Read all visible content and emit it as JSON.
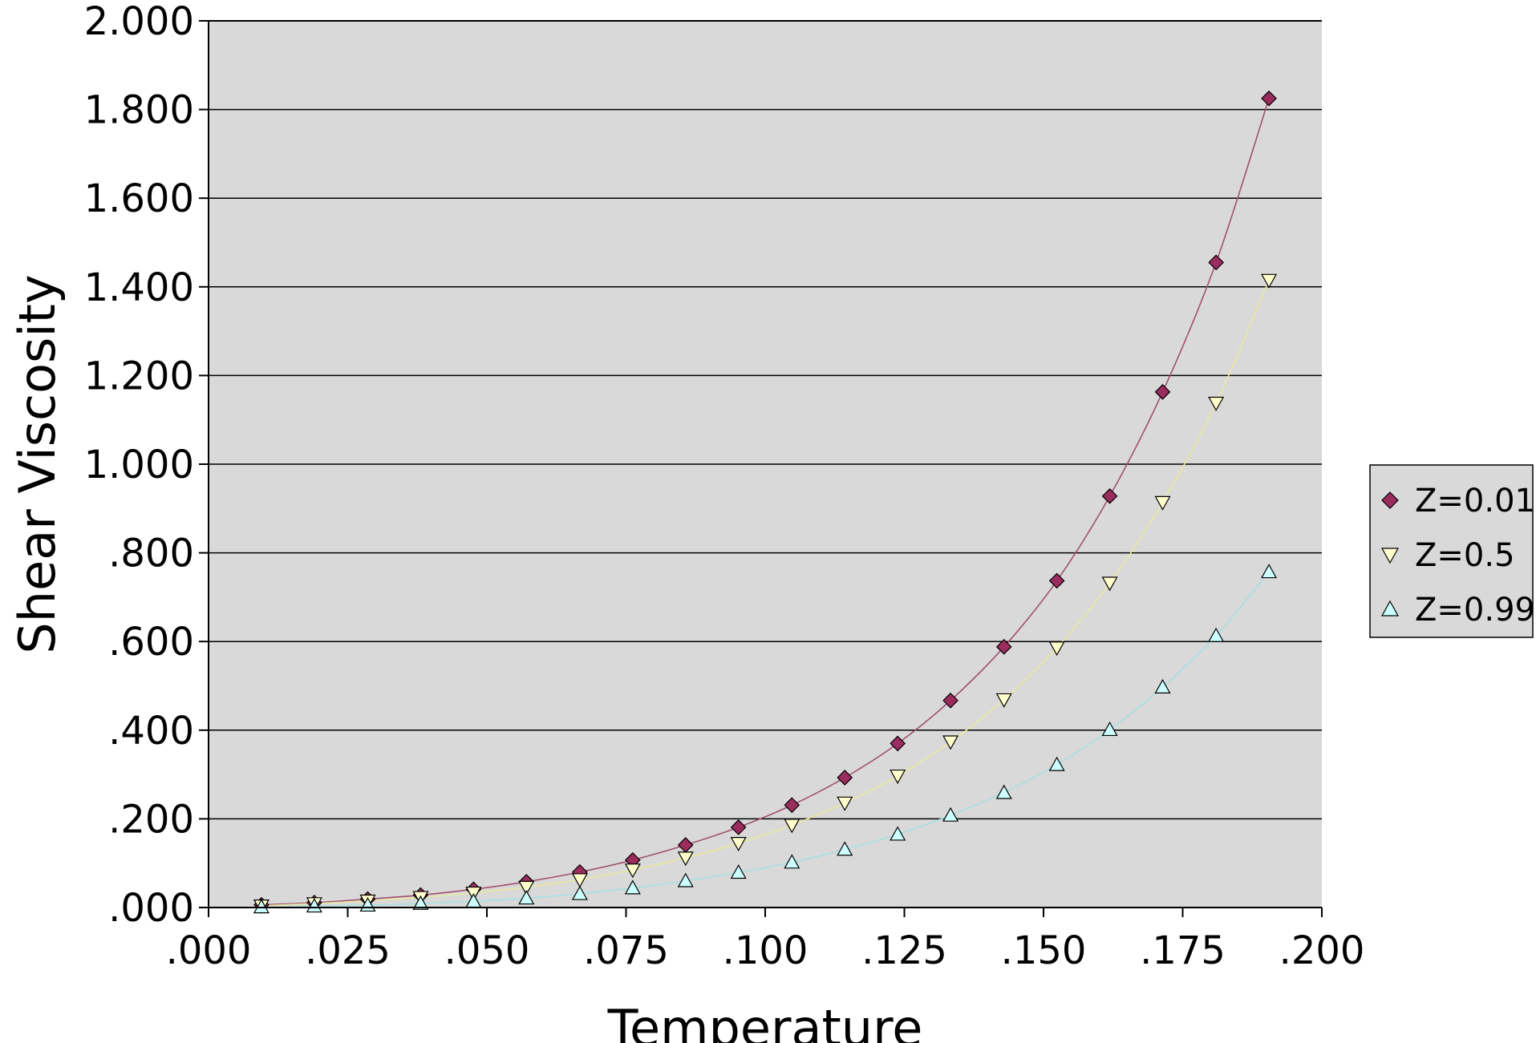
{
  "chart_data": {
    "type": "line",
    "title": "",
    "xlabel": "Temperature",
    "ylabel": "Shear Viscosity",
    "xlim": [
      0,
      0.2
    ],
    "ylim": [
      0,
      2.0
    ],
    "x_ticks": [
      ".000",
      ".025",
      ".050",
      ".075",
      ".100",
      ".125",
      ".150",
      ".175",
      ".200"
    ],
    "y_ticks": [
      ".000",
      ".200",
      ".400",
      ".600",
      ".800",
      "1.000",
      "1.200",
      "1.400",
      "1.600",
      "1.800",
      "2.000"
    ],
    "grid": "horizontal",
    "background": "#d9d9d9",
    "legend_position": "right",
    "x": [
      0.0095,
      0.019,
      0.0286,
      0.0381,
      0.0476,
      0.0571,
      0.0667,
      0.0762,
      0.0857,
      0.0952,
      0.1048,
      0.1143,
      0.1238,
      0.1333,
      0.1429,
      0.1524,
      0.1619,
      0.1714,
      0.181,
      0.1905
    ],
    "series": [
      {
        "name": "Z=0.01",
        "marker": "diamond",
        "color": "#9b2c5e",
        "line_color": "#a05070",
        "values": [
          0.006,
          0.011,
          0.019,
          0.028,
          0.041,
          0.058,
          0.08,
          0.107,
          0.141,
          0.181,
          0.231,
          0.293,
          0.37,
          0.467,
          0.588,
          0.737,
          0.928,
          1.163,
          1.455,
          1.825
        ]
      },
      {
        "name": "Z=0.5",
        "marker": "triangle-down",
        "color": "#ffffcc",
        "line_color": "#e8e8a0",
        "values": [
          0.004,
          0.009,
          0.015,
          0.023,
          0.033,
          0.046,
          0.063,
          0.085,
          0.112,
          0.145,
          0.186,
          0.236,
          0.297,
          0.374,
          0.469,
          0.586,
          0.732,
          0.914,
          1.138,
          1.415
        ]
      },
      {
        "name": "Z=0.99",
        "marker": "triangle-up",
        "color": "#ccffff",
        "line_color": "#a8e0e0",
        "values": [
          0.001,
          0.003,
          0.005,
          0.009,
          0.014,
          0.021,
          0.031,
          0.044,
          0.06,
          0.079,
          0.102,
          0.131,
          0.165,
          0.208,
          0.259,
          0.322,
          0.401,
          0.497,
          0.613,
          0.757
        ]
      }
    ]
  }
}
